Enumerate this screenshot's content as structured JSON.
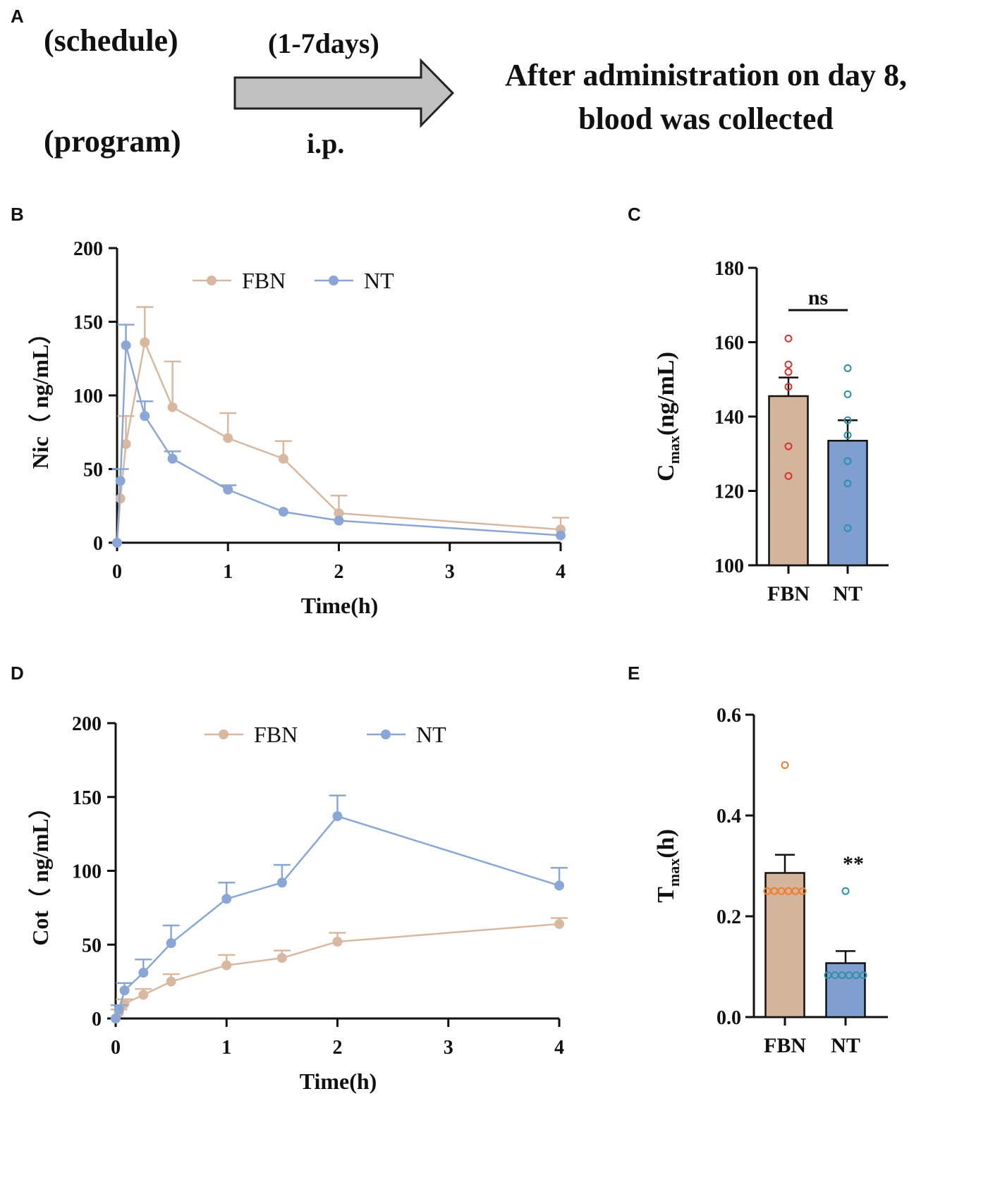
{
  "panel_labels": {
    "a": "A",
    "b": "B",
    "c": "C",
    "d": "D",
    "e": "E"
  },
  "schedule": {
    "label_top": "(schedule)",
    "label_bottom": "(program)",
    "arrow_top": "(1-7days)",
    "arrow_bottom": "i.p.",
    "result_line1": "After administration on day 8,",
    "result_line2": "blood was collected"
  },
  "colors": {
    "fbn": "#d8b8a0",
    "nt": "#8aa6d4",
    "fbn_bar": "#d5b49c",
    "nt_bar": "#7f9fd1",
    "dot_red": "#d6332c",
    "dot_teal": "#2f8fa6",
    "dot_orange": "#ef7d2c"
  },
  "chart_data": [
    {
      "id": "B",
      "type": "line",
      "title": "",
      "xlabel": "Time(h)",
      "ylabel": "Nic（ ng/mL）",
      "xlim": [
        0,
        4
      ],
      "ylim": [
        0,
        200
      ],
      "xticks": [
        "0",
        "1",
        "2",
        "3",
        "4"
      ],
      "yticks": [
        "0",
        "50",
        "100",
        "150",
        "200"
      ],
      "legend": [
        "FBN",
        "NT"
      ],
      "series": [
        {
          "name": "FBN",
          "x": [
            0,
            0.03,
            0.08,
            0.25,
            0.5,
            1,
            1.5,
            2,
            4
          ],
          "y": [
            0,
            30,
            67,
            136,
            92,
            71,
            57,
            20,
            9
          ],
          "err": [
            0,
            0,
            19,
            24,
            31,
            17,
            12,
            12,
            8
          ]
        },
        {
          "name": "NT",
          "x": [
            0,
            0.03,
            0.08,
            0.25,
            0.5,
            1,
            1.5,
            2,
            4
          ],
          "y": [
            0,
            42,
            134,
            86,
            57,
            36,
            21,
            15,
            5
          ],
          "err": [
            0,
            8,
            14,
            10,
            5,
            3,
            0,
            0,
            0
          ]
        }
      ]
    },
    {
      "id": "C",
      "type": "bar",
      "title": "",
      "ylabel_main": "C",
      "ylabel_sub": "max",
      "ylabel_tail": "(ng/mL)",
      "categories": [
        "FBN",
        "NT"
      ],
      "values": [
        145.5,
        133.5
      ],
      "errors": [
        5,
        5.5
      ],
      "ylim": [
        100,
        180
      ],
      "yticks": [
        "100",
        "120",
        "140",
        "160",
        "180"
      ],
      "points": [
        [
          161,
          154,
          152,
          148,
          132,
          124
        ],
        [
          153,
          146,
          139,
          135,
          128,
          122,
          110
        ]
      ],
      "annotation": "ns"
    },
    {
      "id": "D",
      "type": "line",
      "title": "",
      "xlabel": "Time(h)",
      "ylabel": "Cot（ ng/mL）",
      "xlim": [
        0,
        4
      ],
      "ylim": [
        0,
        200
      ],
      "xticks": [
        "0",
        "1",
        "2",
        "3",
        "4"
      ],
      "yticks": [
        "0",
        "50",
        "100",
        "150",
        "200"
      ],
      "legend": [
        "FBN",
        "NT"
      ],
      "series": [
        {
          "name": "FBN",
          "x": [
            0,
            0.03,
            0.08,
            0.25,
            0.5,
            1,
            1.5,
            2,
            4
          ],
          "y": [
            0,
            4,
            10,
            16,
            25,
            36,
            41,
            52,
            64
          ],
          "err": [
            0,
            2,
            3,
            4,
            5,
            7,
            5,
            6,
            4
          ]
        },
        {
          "name": "NT",
          "x": [
            0,
            0.03,
            0.08,
            0.25,
            0.5,
            1,
            1.5,
            2,
            4
          ],
          "y": [
            0,
            6,
            19,
            31,
            51,
            81,
            92,
            137,
            90
          ],
          "err": [
            0,
            3,
            5,
            9,
            12,
            11,
            12,
            14,
            12
          ]
        }
      ]
    },
    {
      "id": "E",
      "type": "bar",
      "title": "",
      "ylabel_main": "T",
      "ylabel_sub": "max",
      "ylabel_tail": "(h)",
      "categories": [
        "FBN",
        "NT"
      ],
      "values": [
        0.286,
        0.107
      ],
      "errors": [
        0.036,
        0.024
      ],
      "ylim": [
        0,
        0.6
      ],
      "yticks": [
        "0.0",
        "0.2",
        "0.4",
        "0.6"
      ],
      "points": [
        [
          0.5,
          0.25,
          0.25,
          0.25,
          0.25,
          0.25,
          0.25
        ],
        [
          0.25,
          0.083,
          0.083,
          0.083,
          0.083,
          0.083,
          0.083
        ]
      ],
      "annotation": "**"
    }
  ]
}
